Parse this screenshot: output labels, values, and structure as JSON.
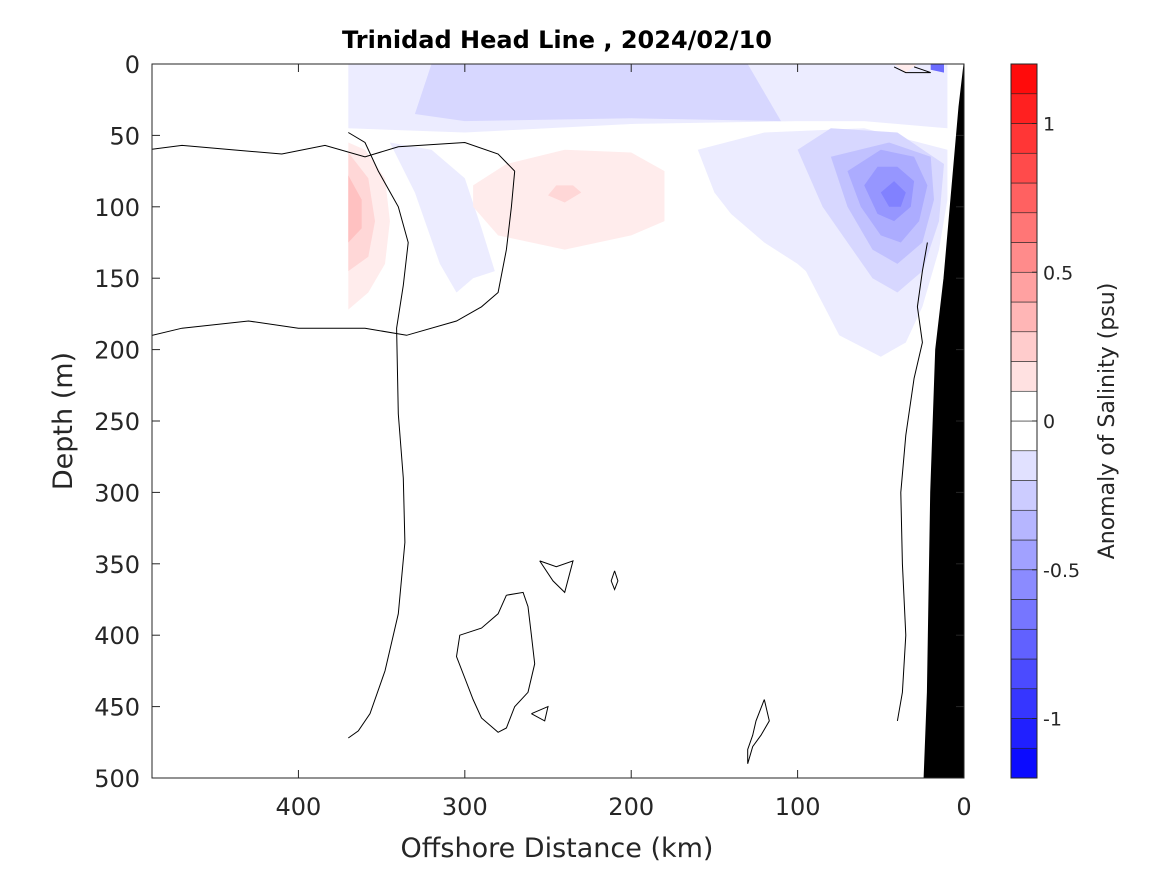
{
  "chart_data": {
    "type": "heatmap",
    "title": "Trinidad Head Line , 2024/02/10",
    "xlabel": "Offshore Distance (km)",
    "ylabel": "Depth (m)",
    "colorbar_label": "Anomaly of Salinity (psu)",
    "xlim": [
      488,
      0
    ],
    "ylim": [
      500,
      0
    ],
    "x_reversed": true,
    "y_reversed": true,
    "x_ticks": [
      400,
      300,
      200,
      100,
      0
    ],
    "y_ticks": [
      0,
      50,
      100,
      150,
      200,
      250,
      300,
      350,
      400,
      450,
      500
    ],
    "colorbar_range": [
      -1.2,
      1.2
    ],
    "colorbar_step": 0.1,
    "colorbar_ticks": [
      {
        "value": 1,
        "label": "1"
      },
      {
        "value": 0.5,
        "label": "0.5"
      },
      {
        "value": 0,
        "label": "0"
      },
      {
        "value": -0.5,
        "label": "-0.5"
      },
      {
        "value": -1,
        "label": "-1"
      }
    ],
    "data_extent_x": [
      0,
      370
    ],
    "zero_contours": [
      [
        [
          370,
          48
        ],
        [
          360,
          55
        ],
        [
          352,
          75
        ],
        [
          340,
          100
        ],
        [
          334,
          125
        ],
        [
          337,
          155
        ],
        [
          341,
          185
        ],
        [
          340,
          245
        ],
        [
          337,
          290
        ],
        [
          336,
          335
        ],
        [
          340,
          385
        ],
        [
          348,
          425
        ],
        [
          357,
          455
        ],
        [
          364,
          467
        ],
        [
          370,
          472
        ]
      ],
      [
        [
          270,
          75
        ],
        [
          280,
          63
        ],
        [
          300,
          55
        ],
        [
          340,
          58
        ],
        [
          360,
          65
        ],
        [
          384,
          57
        ],
        [
          410,
          63
        ],
        [
          440,
          60
        ],
        [
          470,
          57
        ],
        [
          490,
          60
        ],
        [
          510,
          65
        ],
        [
          525,
          75
        ],
        [
          530,
          90
        ],
        [
          535,
          100
        ],
        [
          525,
          125
        ],
        [
          520,
          135
        ],
        [
          515,
          160
        ],
        [
          510,
          180
        ],
        [
          495,
          192
        ],
        [
          470,
          185
        ],
        [
          430,
          180
        ],
        [
          400,
          185
        ],
        [
          360,
          185
        ],
        [
          335,
          190
        ],
        [
          305,
          180
        ],
        [
          290,
          170
        ],
        [
          280,
          160
        ],
        [
          275,
          130
        ],
        [
          272,
          100
        ],
        [
          270,
          75
        ]
      ],
      [
        [
          255,
          348
        ],
        [
          245,
          352
        ],
        [
          235,
          348
        ],
        [
          240,
          370
        ],
        [
          247,
          362
        ],
        [
          255,
          348
        ]
      ],
      [
        [
          210,
          355
        ],
        [
          208,
          362
        ],
        [
          210,
          368
        ],
        [
          212,
          362
        ],
        [
          210,
          355
        ]
      ],
      [
        [
          275,
          372
        ],
        [
          265,
          370
        ],
        [
          262,
          380
        ],
        [
          260,
          400
        ],
        [
          258,
          420
        ],
        [
          262,
          440
        ],
        [
          270,
          450
        ],
        [
          275,
          465
        ],
        [
          280,
          468
        ],
        [
          290,
          458
        ],
        [
          295,
          445
        ],
        [
          300,
          430
        ],
        [
          305,
          415
        ],
        [
          303,
          400
        ],
        [
          290,
          395
        ],
        [
          280,
          385
        ],
        [
          275,
          372
        ]
      ],
      [
        [
          260,
          455
        ],
        [
          250,
          450
        ],
        [
          252,
          460
        ],
        [
          260,
          455
        ]
      ],
      [
        [
          120,
          445
        ],
        [
          125,
          460
        ],
        [
          127,
          470
        ],
        [
          130,
          480
        ],
        [
          130,
          490
        ],
        [
          127,
          478
        ],
        [
          122,
          470
        ],
        [
          117,
          460
        ],
        [
          120,
          445
        ]
      ],
      [
        [
          22,
          125
        ],
        [
          25,
          145
        ],
        [
          28,
          170
        ],
        [
          25,
          195
        ],
        [
          30,
          220
        ],
        [
          35,
          260
        ],
        [
          38,
          300
        ],
        [
          37,
          350
        ],
        [
          35,
          400
        ],
        [
          37,
          440
        ],
        [
          40,
          460
        ]
      ],
      [
        [
          30,
          2
        ],
        [
          25,
          4
        ],
        [
          20,
          6
        ],
        [
          35,
          6
        ],
        [
          42,
          2
        ]
      ]
    ],
    "anomaly_field": [
      {
        "level": -0.1,
        "region": [
          [
            370,
            0
          ],
          [
            10,
            0
          ],
          [
            10,
            45
          ],
          [
            60,
            40
          ],
          [
            100,
            40
          ],
          [
            200,
            42
          ],
          [
            300,
            48
          ],
          [
            370,
            45
          ]
        ]
      },
      {
        "level": -0.2,
        "region": [
          [
            320,
            0
          ],
          [
            130,
            0
          ],
          [
            110,
            40
          ],
          [
            200,
            38
          ],
          [
            300,
            40
          ],
          [
            330,
            35
          ]
        ]
      },
      {
        "level": -0.1,
        "region": [
          [
            345,
            55
          ],
          [
            330,
            90
          ],
          [
            315,
            140
          ],
          [
            305,
            160
          ],
          [
            295,
            150
          ],
          [
            282,
            145
          ],
          [
            290,
            115
          ],
          [
            300,
            80
          ],
          [
            320,
            60
          ]
        ]
      },
      {
        "level": -0.1,
        "region": [
          [
            160,
            60
          ],
          [
            150,
            90
          ],
          [
            140,
            105
          ],
          [
            120,
            125
          ],
          [
            100,
            140
          ],
          [
            95,
            145
          ],
          [
            75,
            190
          ],
          [
            50,
            205
          ],
          [
            35,
            195
          ],
          [
            25,
            170
          ],
          [
            20,
            150
          ],
          [
            15,
            130
          ],
          [
            10,
            95
          ],
          [
            10,
            60
          ],
          [
            60,
            45
          ],
          [
            120,
            48
          ]
        ]
      },
      {
        "level": -0.2,
        "region": [
          [
            100,
            60
          ],
          [
            85,
            100
          ],
          [
            70,
            125
          ],
          [
            55,
            150
          ],
          [
            40,
            160
          ],
          [
            25,
            145
          ],
          [
            15,
            110
          ],
          [
            12,
            70
          ],
          [
            40,
            48
          ],
          [
            80,
            45
          ]
        ]
      },
      {
        "level": -0.3,
        "region": [
          [
            80,
            65
          ],
          [
            70,
            100
          ],
          [
            55,
            130
          ],
          [
            40,
            140
          ],
          [
            25,
            125
          ],
          [
            18,
            95
          ],
          [
            20,
            65
          ],
          [
            45,
            55
          ]
        ]
      },
      {
        "level": -0.4,
        "region": [
          [
            70,
            75
          ],
          [
            62,
            100
          ],
          [
            50,
            120
          ],
          [
            38,
            125
          ],
          [
            27,
            110
          ],
          [
            22,
            85
          ],
          [
            30,
            65
          ],
          [
            50,
            60
          ]
        ]
      },
      {
        "level": -0.5,
        "region": [
          [
            60,
            85
          ],
          [
            52,
            105
          ],
          [
            42,
            110
          ],
          [
            32,
            100
          ],
          [
            30,
            82
          ],
          [
            40,
            72
          ],
          [
            52,
            72
          ]
        ]
      },
      {
        "level": -0.6,
        "region": [
          [
            50,
            90
          ],
          [
            45,
            100
          ],
          [
            38,
            100
          ],
          [
            35,
            90
          ],
          [
            42,
            82
          ]
        ]
      },
      {
        "level": -0.7,
        "region": [
          [
            20,
            0
          ],
          [
            12,
            0
          ],
          [
            12,
            6
          ],
          [
            20,
            4
          ]
        ]
      },
      {
        "level": 0.1,
        "region": [
          [
            370,
            55
          ],
          [
            360,
            60
          ],
          [
            348,
            80
          ],
          [
            345,
            110
          ],
          [
            348,
            140
          ],
          [
            358,
            160
          ],
          [
            370,
            172
          ]
        ]
      },
      {
        "level": 0.2,
        "region": [
          [
            370,
            62
          ],
          [
            358,
            80
          ],
          [
            354,
            110
          ],
          [
            358,
            135
          ],
          [
            370,
            145
          ]
        ]
      },
      {
        "level": 0.3,
        "region": [
          [
            370,
            78
          ],
          [
            362,
            95
          ],
          [
            362,
            115
          ],
          [
            370,
            125
          ]
        ]
      },
      {
        "level": 0.1,
        "region": [
          [
            295,
            85
          ],
          [
            275,
            70
          ],
          [
            240,
            60
          ],
          [
            200,
            62
          ],
          [
            180,
            75
          ],
          [
            180,
            110
          ],
          [
            200,
            120
          ],
          [
            240,
            130
          ],
          [
            280,
            120
          ],
          [
            295,
            100
          ]
        ]
      },
      {
        "level": 0.2,
        "region": [
          [
            245,
            85
          ],
          [
            235,
            85
          ],
          [
            230,
            90
          ],
          [
            240,
            97
          ],
          [
            250,
            92
          ]
        ]
      },
      {
        "level": 0.1,
        "region": [
          [
            42,
            0
          ],
          [
            35,
            6
          ],
          [
            28,
            0
          ]
        ]
      }
    ],
    "shelf_bottom": [
      [
        0,
        0
      ],
      [
        0,
        500
      ],
      [
        24,
        500
      ],
      [
        22,
        440
      ],
      [
        20,
        300
      ],
      [
        17,
        200
      ],
      [
        12,
        150
      ],
      [
        3,
        30
      ]
    ]
  }
}
